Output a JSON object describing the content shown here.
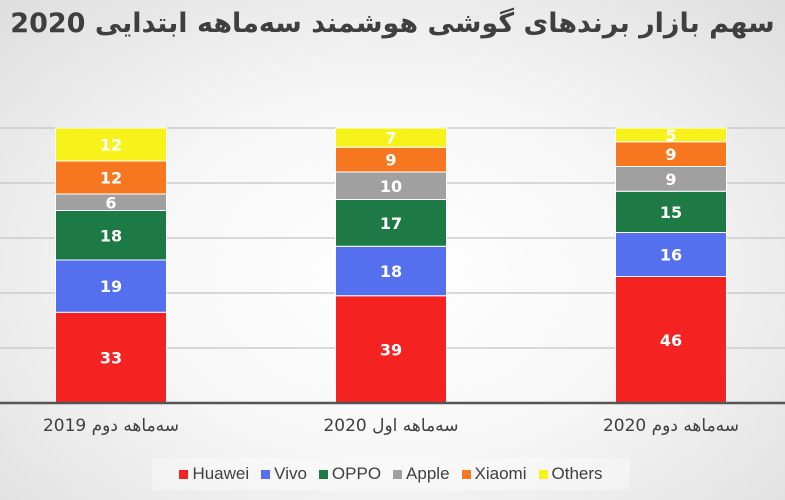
{
  "chart_data": {
    "type": "bar",
    "stacked": true,
    "title": "سهم بازار برندهای گوشی هوشمند سه‌ماهه ابتدایی 2020",
    "categories": [
      "سه‌ماهه دوم 2019",
      "سه‌ماهه اول 2020",
      "سه‌ماهه دوم 2020"
    ],
    "series": [
      {
        "name": "Huawei",
        "color": "#f52222",
        "values": [
          33,
          39,
          46
        ]
      },
      {
        "name": "Vivo",
        "color": "#5470ee",
        "values": [
          19,
          18,
          16
        ]
      },
      {
        "name": "OPPO",
        "color": "#1d7a45",
        "values": [
          18,
          17,
          15
        ]
      },
      {
        "name": "Apple",
        "color": "#a0a0a0",
        "values": [
          6,
          10,
          9
        ]
      },
      {
        "name": "Xiaomi",
        "color": "#f6771f",
        "values": [
          12,
          9,
          9
        ]
      },
      {
        "name": "Others",
        "color": "#f7f21a",
        "values": [
          12,
          7,
          5
        ]
      }
    ],
    "ylim": [
      0,
      100
    ],
    "grid": true,
    "legend": "bottom",
    "xlabel": "",
    "ylabel": ""
  }
}
